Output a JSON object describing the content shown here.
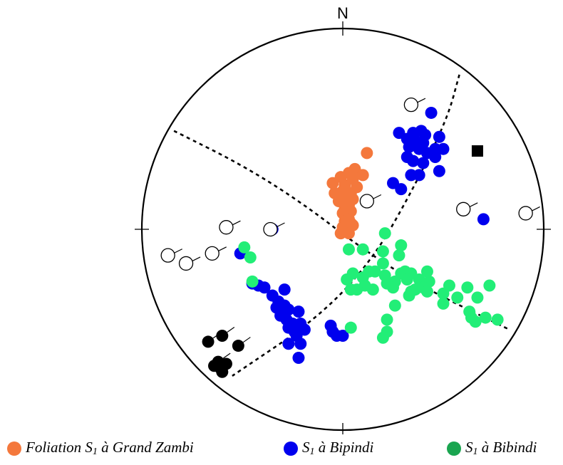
{
  "north_label": "N",
  "colors": {
    "grand_zambi": "#f4783c",
    "bipindi": "#0000ee",
    "bibindi": "#22ee77",
    "bibindi_legend": "#1aa550",
    "black": "#000000"
  },
  "legend": [
    {
      "pre": "Foliation S",
      "sub": "1",
      "post": " à Grand Zambi",
      "color_key": "grand_zambi"
    },
    {
      "pre": "S",
      "sub": "1",
      "post": " à Bipindi",
      "color_key": "bipindi"
    },
    {
      "pre": "S",
      "sub": "1",
      "post": " à Bibindi",
      "color_key": "bibindi_legend"
    }
  ],
  "chart_data": {
    "type": "scatter",
    "series": [
      {
        "name": "Foliation S1 à Grand Zambi",
        "color_key": "grand_zambi",
        "points": [
          [
            0.12,
            0.38
          ],
          [
            0.06,
            0.3
          ],
          [
            0.03,
            0.28
          ],
          [
            -0.01,
            0.26
          ],
          [
            0.05,
            0.25
          ],
          [
            0.1,
            0.27
          ],
          [
            -0.05,
            0.23
          ],
          [
            0.01,
            0.22
          ],
          [
            0.07,
            0.21
          ],
          [
            0.0,
            0.19
          ],
          [
            0.04,
            0.18
          ],
          [
            -0.04,
            0.18
          ],
          [
            0.02,
            0.16
          ],
          [
            0.05,
            0.15
          ],
          [
            -0.02,
            0.14
          ],
          [
            0.03,
            0.12
          ],
          [
            0.01,
            0.1
          ],
          [
            0.04,
            0.09
          ],
          [
            0.0,
            0.08
          ],
          [
            0.03,
            0.05
          ],
          [
            0.01,
            0.04
          ],
          [
            0.04,
            0.03
          ],
          [
            0.0,
            0.01
          ],
          [
            0.02,
            0.0
          ],
          [
            0.05,
            0.02
          ],
          [
            -0.01,
            -0.02
          ],
          [
            0.03,
            -0.02
          ]
        ]
      },
      {
        "name": "S1 à Bipindi",
        "color_key": "bipindi",
        "points": [
          [
            0.44,
            0.58
          ],
          [
            0.28,
            0.48
          ],
          [
            0.35,
            0.48
          ],
          [
            0.39,
            0.49
          ],
          [
            0.41,
            0.47
          ],
          [
            0.48,
            0.46
          ],
          [
            0.32,
            0.45
          ],
          [
            0.36,
            0.44
          ],
          [
            0.4,
            0.43
          ],
          [
            0.33,
            0.41
          ],
          [
            0.38,
            0.4
          ],
          [
            0.46,
            0.4
          ],
          [
            0.5,
            0.4
          ],
          [
            0.42,
            0.38
          ],
          [
            0.46,
            0.36
          ],
          [
            0.32,
            0.36
          ],
          [
            0.35,
            0.34
          ],
          [
            0.4,
            0.33
          ],
          [
            0.48,
            0.29
          ],
          [
            0.34,
            0.27
          ],
          [
            0.38,
            0.27
          ],
          [
            0.25,
            0.23
          ],
          [
            0.29,
            0.2
          ],
          [
            0.7,
            0.05
          ],
          [
            -0.35,
            0.0
          ],
          [
            -0.51,
            -0.12
          ],
          [
            -0.45,
            -0.27
          ],
          [
            -0.42,
            -0.28
          ],
          [
            -0.39,
            -0.29
          ],
          [
            -0.29,
            -0.3
          ],
          [
            -0.35,
            -0.33
          ],
          [
            -0.32,
            -0.36
          ],
          [
            -0.29,
            -0.38
          ],
          [
            -0.33,
            -0.39
          ],
          [
            -0.27,
            -0.4
          ],
          [
            -0.22,
            -0.41
          ],
          [
            -0.31,
            -0.43
          ],
          [
            -0.28,
            -0.45
          ],
          [
            -0.25,
            -0.47
          ],
          [
            -0.21,
            -0.47
          ],
          [
            -0.27,
            -0.49
          ],
          [
            -0.24,
            -0.51
          ],
          [
            -0.19,
            -0.5
          ],
          [
            -0.06,
            -0.48
          ],
          [
            -0.05,
            -0.51
          ],
          [
            -0.03,
            -0.53
          ],
          [
            0.0,
            -0.53
          ],
          [
            -0.23,
            -0.53
          ],
          [
            -0.27,
            -0.57
          ],
          [
            -0.21,
            -0.57
          ],
          [
            -0.22,
            -0.64
          ]
        ]
      },
      {
        "name": "S1 à Bibindi",
        "color_key": "bibindi",
        "points": [
          [
            0.21,
            -0.02
          ],
          [
            0.03,
            -0.1
          ],
          [
            0.1,
            -0.1
          ],
          [
            0.2,
            -0.11
          ],
          [
            0.29,
            -0.08
          ],
          [
            0.28,
            -0.13
          ],
          [
            0.2,
            -0.17
          ],
          [
            0.13,
            -0.21
          ],
          [
            0.16,
            -0.21
          ],
          [
            0.05,
            -0.22
          ],
          [
            0.1,
            -0.24
          ],
          [
            0.21,
            -0.23
          ],
          [
            0.29,
            -0.22
          ],
          [
            0.31,
            -0.21
          ],
          [
            0.34,
            -0.22
          ],
          [
            0.42,
            -0.21
          ],
          [
            0.02,
            -0.25
          ],
          [
            0.26,
            -0.26
          ],
          [
            0.32,
            -0.25
          ],
          [
            0.38,
            -0.25
          ],
          [
            0.43,
            -0.26
          ],
          [
            0.22,
            -0.27
          ],
          [
            0.11,
            -0.28
          ],
          [
            0.15,
            -0.3
          ],
          [
            0.25,
            -0.29
          ],
          [
            0.36,
            -0.3
          ],
          [
            0.4,
            -0.29
          ],
          [
            0.07,
            -0.3
          ],
          [
            0.04,
            -0.3
          ],
          [
            0.34,
            -0.31
          ],
          [
            0.42,
            -0.31
          ],
          [
            0.33,
            -0.33
          ],
          [
            0.53,
            -0.28
          ],
          [
            0.62,
            -0.29
          ],
          [
            0.73,
            -0.28
          ],
          [
            0.5,
            -0.32
          ],
          [
            0.57,
            -0.34
          ],
          [
            0.67,
            -0.34
          ],
          [
            0.5,
            -0.37
          ],
          [
            0.26,
            -0.38
          ],
          [
            0.63,
            -0.41
          ],
          [
            0.71,
            -0.44
          ],
          [
            0.64,
            -0.44
          ],
          [
            0.66,
            -0.46
          ],
          [
            0.77,
            -0.45
          ],
          [
            0.22,
            -0.45
          ],
          [
            0.04,
            -0.49
          ],
          [
            0.22,
            -0.51
          ],
          [
            0.2,
            -0.54
          ],
          [
            -0.46,
            -0.14
          ],
          [
            -0.49,
            -0.09
          ],
          [
            -0.45,
            -0.26
          ]
        ]
      },
      {
        "name": "black",
        "color_key": "black",
        "points": [
          [
            -0.6,
            -0.53
          ],
          [
            -0.67,
            -0.56
          ],
          [
            -0.52,
            -0.58
          ],
          [
            -0.62,
            -0.66
          ],
          [
            -0.64,
            -0.68
          ],
          [
            -0.58,
            -0.67
          ],
          [
            -0.61,
            -0.69
          ],
          [
            -0.6,
            -0.71
          ]
        ]
      }
    ],
    "open_circles": [
      [
        0.34,
        0.62
      ],
      [
        0.6,
        0.1
      ],
      [
        0.91,
        0.08
      ],
      [
        0.12,
        0.14
      ],
      [
        -0.58,
        0.01
      ],
      [
        -0.36,
        0.0
      ],
      [
        -0.87,
        -0.13
      ],
      [
        -0.65,
        -0.12
      ],
      [
        -0.78,
        -0.17
      ]
    ],
    "square": [
      0.67,
      0.39
    ],
    "dashed_lines": [
      [
        [
          -0.84,
          0.49
        ],
        [
          -0.5,
          0.32
        ],
        [
          -0.2,
          0.13
        ],
        [
          0.1,
          -0.1
        ],
        [
          0.4,
          -0.29
        ],
        [
          0.83,
          -0.5
        ]
      ],
      [
        [
          0.58,
          0.77
        ],
        [
          0.52,
          0.55
        ],
        [
          0.35,
          0.2
        ],
        [
          0.15,
          -0.15
        ],
        [
          -0.12,
          -0.44
        ],
        [
          -0.55,
          -0.73
        ]
      ]
    ]
  }
}
